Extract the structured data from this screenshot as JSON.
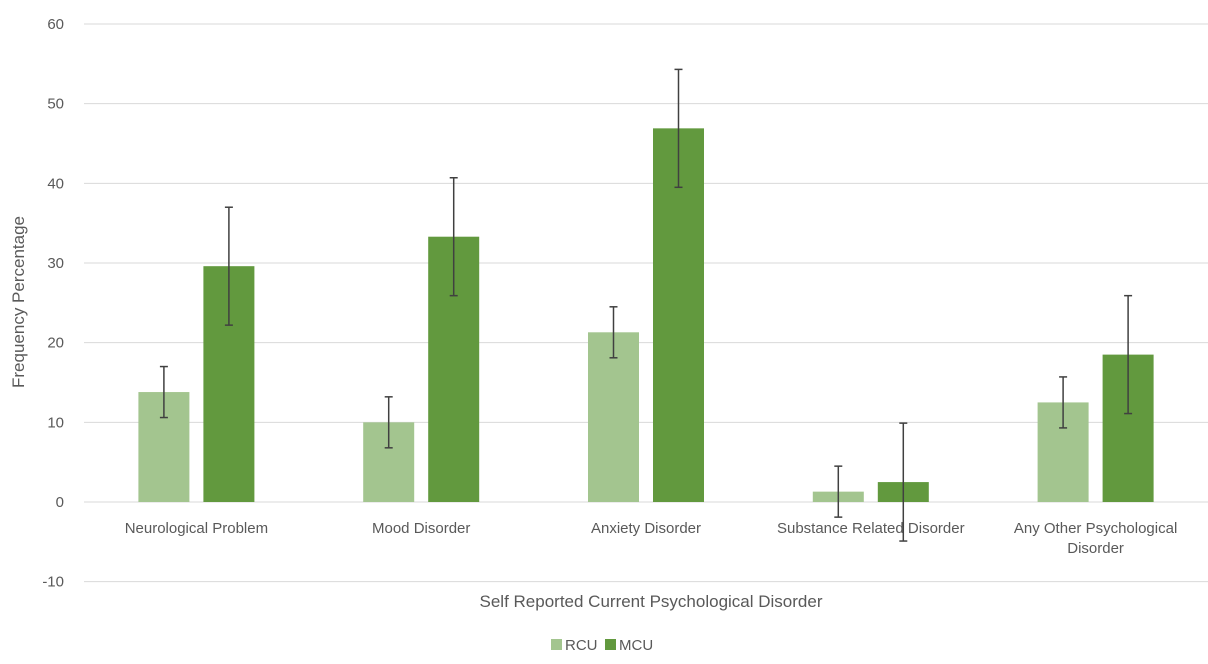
{
  "chart_data": {
    "type": "bar",
    "xlabel": "Self Reported Current Psychological Disorder",
    "ylabel": "Frequency Percentage",
    "ylim": [
      -10,
      60
    ],
    "yticks": [
      -10,
      0,
      10,
      20,
      30,
      40,
      50,
      60
    ],
    "grid": true,
    "legend_position": "bottom",
    "categories": [
      [
        "Neurological Problem"
      ],
      [
        "Mood Disorder"
      ],
      [
        "Anxiety Disorder"
      ],
      [
        "Substance Related Disorder"
      ],
      [
        "Any Other Psychological",
        "Disorder"
      ]
    ],
    "series": [
      {
        "name": "RCU",
        "color": "#a3c58f",
        "values": [
          13.8,
          10.0,
          21.3,
          1.3,
          12.5
        ],
        "error_low": [
          10.6,
          6.8,
          18.1,
          -1.9,
          9.3
        ],
        "error_high": [
          17.0,
          13.2,
          24.5,
          4.5,
          15.7
        ]
      },
      {
        "name": "MCU",
        "color": "#62993e",
        "values": [
          29.6,
          33.3,
          46.9,
          2.5,
          18.5
        ],
        "error_low": [
          22.2,
          25.9,
          39.5,
          -4.9,
          11.1
        ],
        "error_high": [
          37.0,
          40.7,
          54.3,
          9.9,
          25.9
        ]
      }
    ]
  }
}
